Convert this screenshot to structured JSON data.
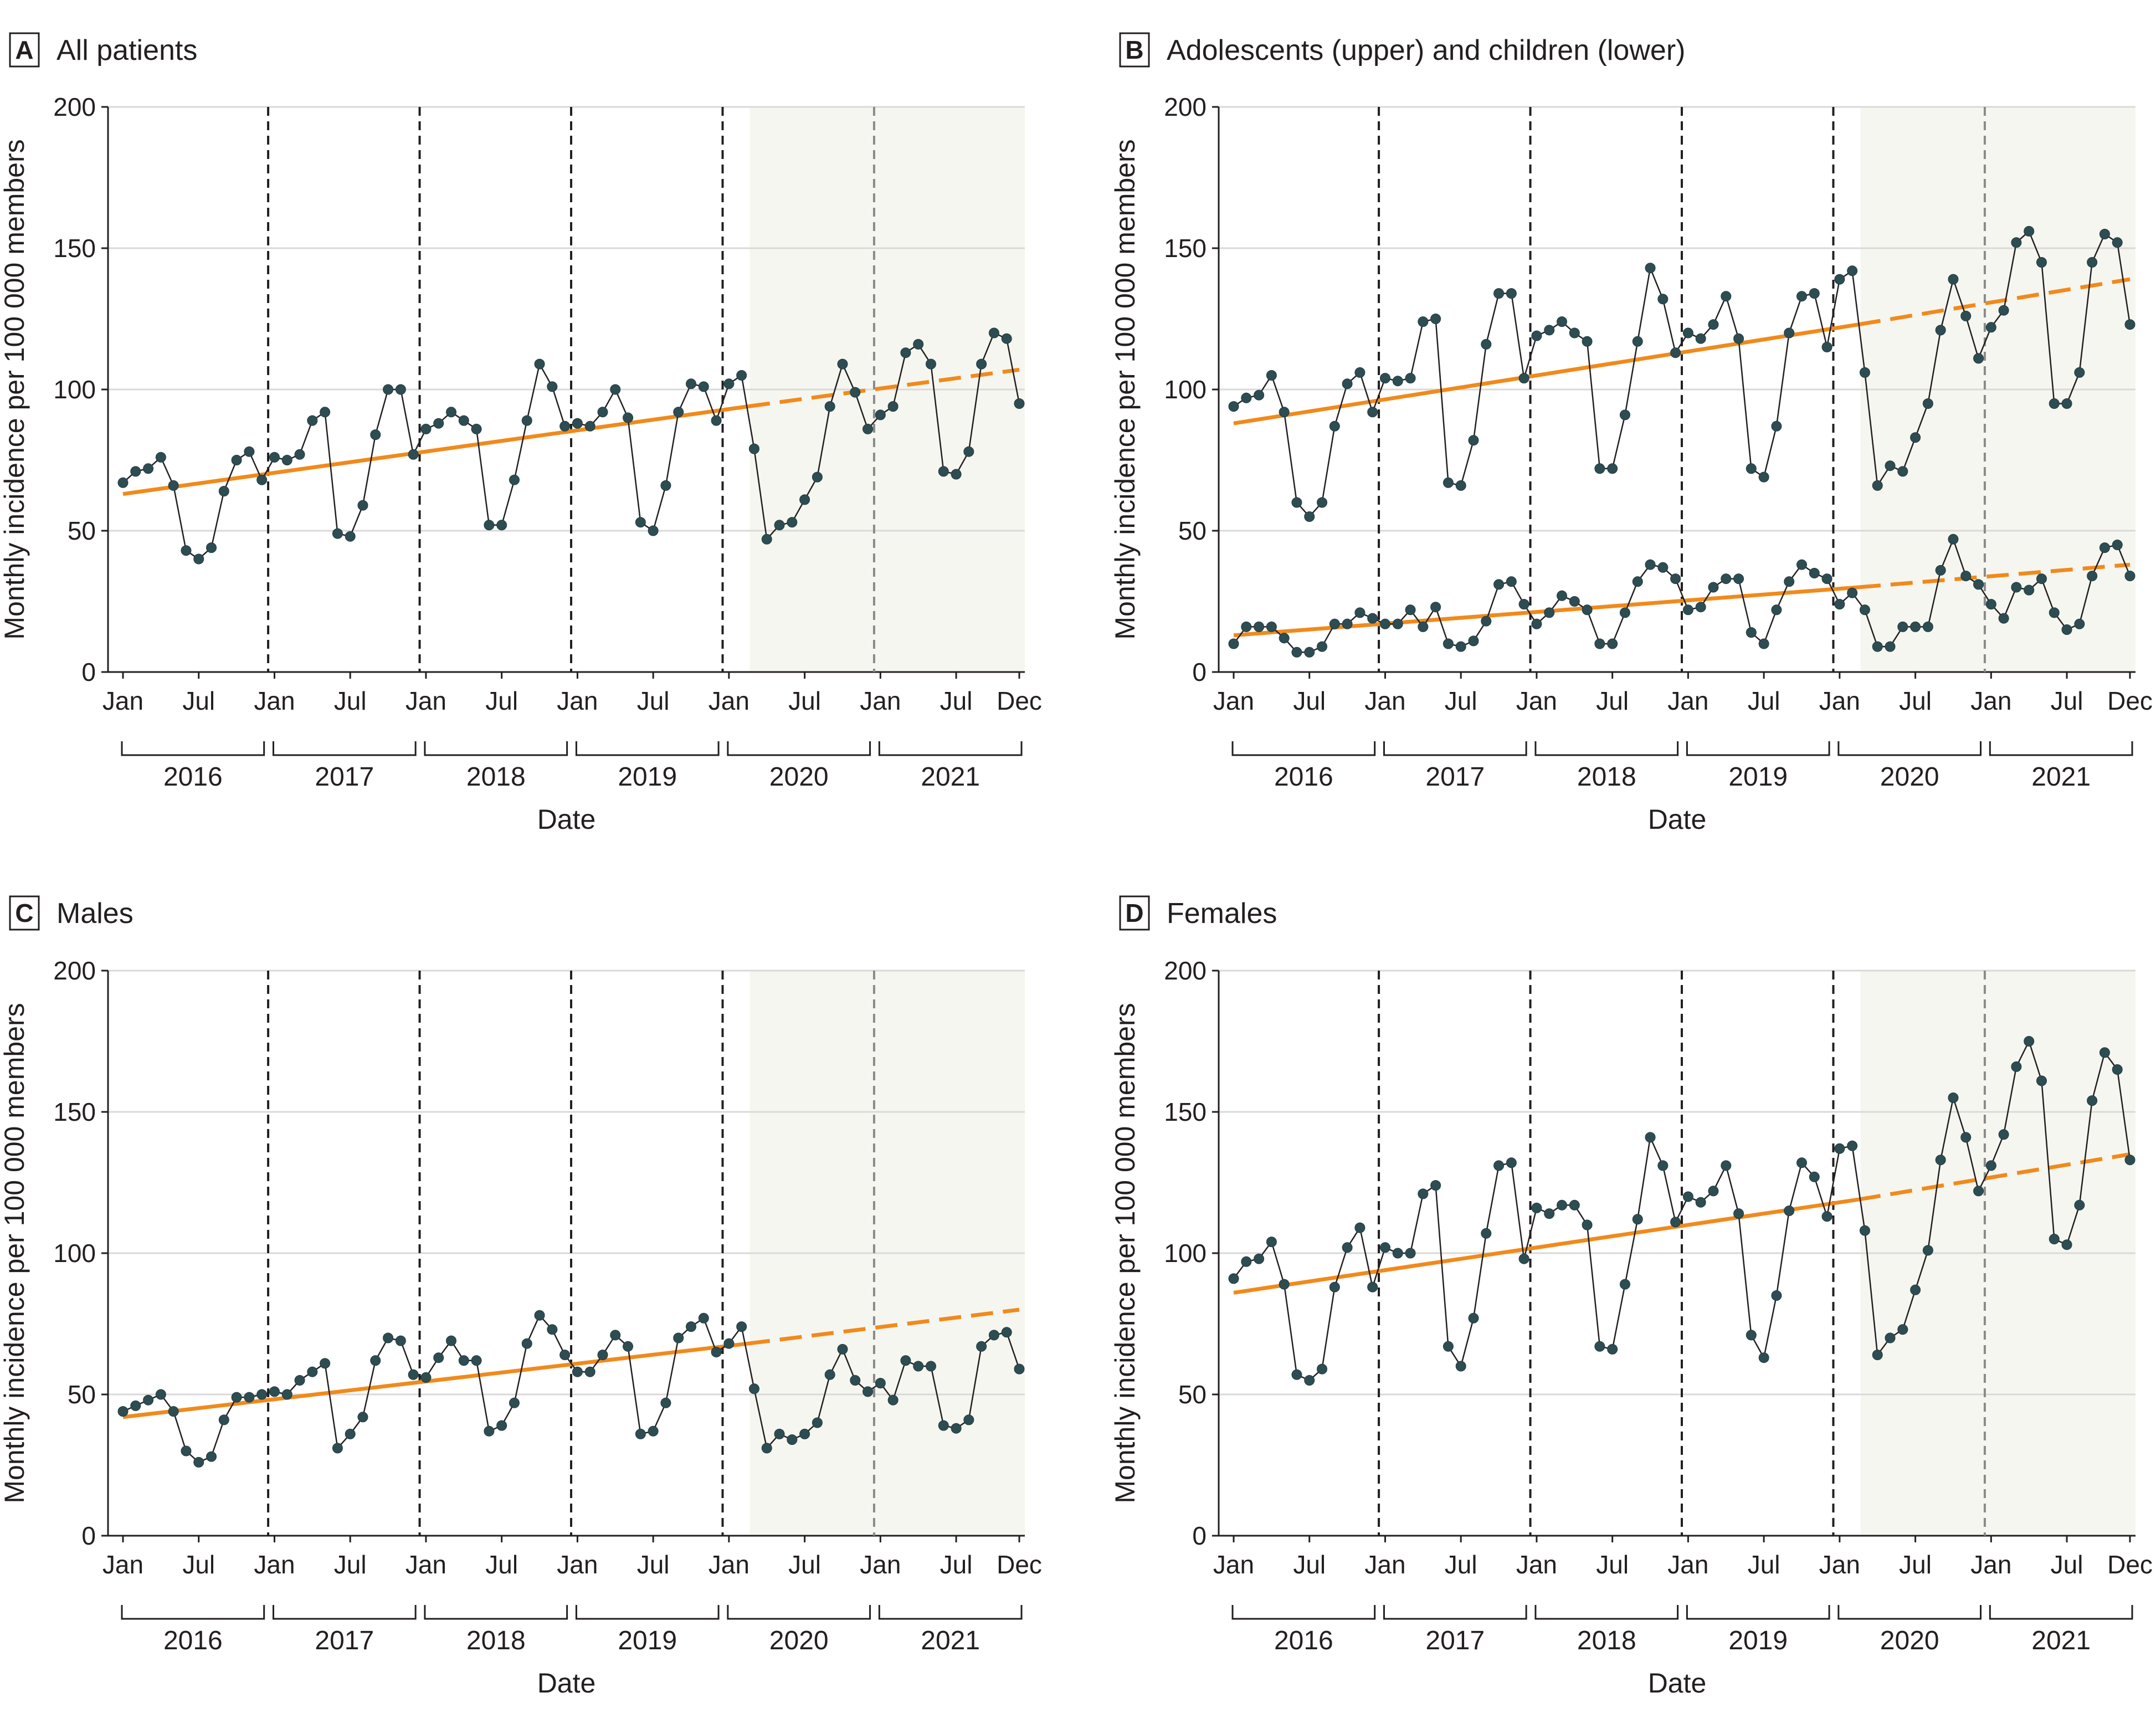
{
  "chart_data": [
    {
      "id": "A",
      "type": "line",
      "letter": "A",
      "title": "All patients",
      "xlabel": "Date",
      "ylabel": "Monthly incidence per 100 000 members",
      "ylim": [
        0,
        200
      ],
      "yticks": [
        "0",
        "50",
        "100",
        "150",
        "200"
      ],
      "month_ticks": [
        "Jan",
        "Jul",
        "Jan",
        "Jul",
        "Jan",
        "Jul",
        "Jan",
        "Jul",
        "Jan",
        "Jul",
        "Jan",
        "Jul",
        "Dec"
      ],
      "years": [
        "2016",
        "2017",
        "2018",
        "2019",
        "2020",
        "2021"
      ],
      "pandemic_shading_start": "2020-03",
      "series": [
        {
          "name": "All patients",
          "values": [
            67,
            71,
            72,
            76,
            66,
            43,
            40,
            44,
            64,
            75,
            78,
            68,
            76,
            75,
            77,
            89,
            92,
            49,
            48,
            59,
            84,
            100,
            100,
            77,
            86,
            88,
            92,
            89,
            86,
            52,
            52,
            68,
            89,
            109,
            101,
            87,
            88,
            87,
            92,
            100,
            90,
            53,
            50,
            66,
            92,
            102,
            101,
            89,
            102,
            105,
            79,
            47,
            52,
            53,
            61,
            69,
            94,
            109,
            99,
            86,
            91,
            94,
            113,
            116,
            109,
            71,
            70,
            78,
            109,
            120,
            118,
            95
          ],
          "trend": {
            "start": 63,
            "end_prepandemic": 94,
            "end_projected": 107
          }
        }
      ]
    },
    {
      "id": "B",
      "type": "line",
      "letter": "B",
      "title": "Adolescents (upper) and children (lower)",
      "xlabel": "Date",
      "ylabel": "Monthly incidence per 100 000 members",
      "ylim": [
        0,
        200
      ],
      "yticks": [
        "0",
        "50",
        "100",
        "150",
        "200"
      ],
      "month_ticks": [
        "Jan",
        "Jul",
        "Jan",
        "Jul",
        "Jan",
        "Jul",
        "Jan",
        "Jul",
        "Jan",
        "Jul",
        "Jan",
        "Jul",
        "Dec"
      ],
      "years": [
        "2016",
        "2017",
        "2018",
        "2019",
        "2020",
        "2021"
      ],
      "pandemic_shading_start": "2020-03",
      "series": [
        {
          "name": "Adolescents",
          "values": [
            94,
            97,
            98,
            105,
            92,
            60,
            55,
            60,
            87,
            102,
            106,
            92,
            104,
            103,
            104,
            124,
            125,
            67,
            66,
            82,
            116,
            134,
            134,
            104,
            119,
            121,
            124,
            120,
            117,
            72,
            72,
            91,
            117,
            143,
            132,
            113,
            120,
            118,
            123,
            133,
            118,
            72,
            69,
            87,
            120,
            133,
            134,
            115,
            139,
            142,
            106,
            66,
            73,
            71,
            83,
            95,
            121,
            139,
            126,
            111,
            122,
            128,
            152,
            156,
            145,
            95,
            95,
            106,
            145,
            155,
            152,
            123
          ],
          "trend": {
            "start": 88,
            "end_prepandemic": 123,
            "end_projected": 139
          }
        },
        {
          "name": "Children",
          "values": [
            10,
            16,
            16,
            16,
            12,
            7,
            7,
            9,
            17,
            17,
            21,
            19,
            17,
            17,
            22,
            16,
            23,
            10,
            9,
            11,
            18,
            31,
            32,
            24,
            17,
            21,
            27,
            25,
            22,
            10,
            10,
            21,
            32,
            38,
            37,
            33,
            22,
            23,
            30,
            33,
            33,
            14,
            10,
            22,
            32,
            38,
            35,
            33,
            24,
            28,
            22,
            9,
            9,
            16,
            16,
            16,
            36,
            47,
            34,
            31,
            24,
            19,
            30,
            29,
            33,
            21,
            15,
            17,
            34,
            44,
            45,
            34
          ],
          "trend": {
            "start": 13,
            "end_prepandemic": 30,
            "end_projected": 38
          }
        }
      ]
    },
    {
      "id": "C",
      "type": "line",
      "letter": "C",
      "title": "Males",
      "xlabel": "Date",
      "ylabel": "Monthly incidence per 100 000 members",
      "ylim": [
        0,
        200
      ],
      "yticks": [
        "0",
        "50",
        "100",
        "150",
        "200"
      ],
      "month_ticks": [
        "Jan",
        "Jul",
        "Jan",
        "Jul",
        "Jan",
        "Jul",
        "Jan",
        "Jul",
        "Jan",
        "Jul",
        "Jan",
        "Jul",
        "Dec"
      ],
      "years": [
        "2016",
        "2017",
        "2018",
        "2019",
        "2020",
        "2021"
      ],
      "pandemic_shading_start": "2020-03",
      "series": [
        {
          "name": "Males",
          "values": [
            44,
            46,
            48,
            50,
            44,
            30,
            26,
            28,
            41,
            49,
            49,
            50,
            51,
            50,
            55,
            58,
            61,
            31,
            36,
            42,
            62,
            70,
            69,
            57,
            56,
            63,
            69,
            62,
            62,
            37,
            39,
            47,
            68,
            78,
            73,
            64,
            58,
            58,
            64,
            71,
            67,
            36,
            37,
            47,
            70,
            74,
            77,
            65,
            68,
            74,
            52,
            31,
            36,
            34,
            36,
            40,
            57,
            66,
            55,
            51,
            54,
            48,
            62,
            60,
            60,
            39,
            38,
            41,
            67,
            71,
            72,
            59
          ],
          "trend": {
            "start": 42,
            "end_prepandemic": 68,
            "end_projected": 80
          }
        }
      ]
    },
    {
      "id": "D",
      "type": "line",
      "letter": "D",
      "title": "Females",
      "xlabel": "Date",
      "ylabel": "Monthly incidence per 100 000 members",
      "ylim": [
        0,
        200
      ],
      "yticks": [
        "0",
        "50",
        "100",
        "150",
        "200"
      ],
      "month_ticks": [
        "Jan",
        "Jul",
        "Jan",
        "Jul",
        "Jan",
        "Jul",
        "Jan",
        "Jul",
        "Jan",
        "Jul",
        "Jan",
        "Jul",
        "Dec"
      ],
      "years": [
        "2016",
        "2017",
        "2018",
        "2019",
        "2020",
        "2021"
      ],
      "pandemic_shading_start": "2020-03",
      "series": [
        {
          "name": "Females",
          "values": [
            91,
            97,
            98,
            104,
            89,
            57,
            55,
            59,
            88,
            102,
            109,
            88,
            102,
            100,
            100,
            121,
            124,
            67,
            60,
            77,
            107,
            131,
            132,
            98,
            116,
            114,
            117,
            117,
            110,
            67,
            66,
            89,
            112,
            141,
            131,
            111,
            120,
            118,
            122,
            131,
            114,
            71,
            63,
            85,
            115,
            132,
            127,
            113,
            137,
            138,
            108,
            64,
            70,
            73,
            87,
            101,
            133,
            155,
            141,
            122,
            131,
            142,
            166,
            175,
            161,
            105,
            103,
            117,
            154,
            171,
            165,
            133
          ],
          "trend": {
            "start": 86,
            "end_prepandemic": 119,
            "end_projected": 135
          }
        }
      ]
    }
  ]
}
